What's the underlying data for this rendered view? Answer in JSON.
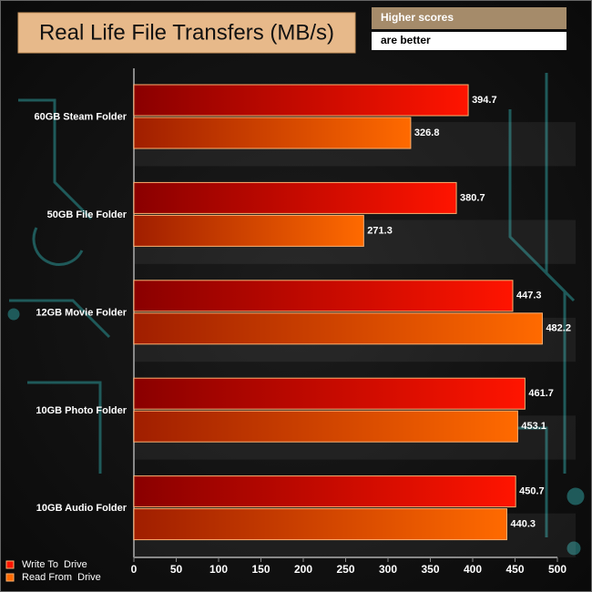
{
  "chart_data": {
    "type": "bar",
    "orientation": "horizontal",
    "title": "Real Life File Transfers (MB/s)",
    "annotations": [
      "Higher scores",
      "are better"
    ],
    "categories": [
      "60GB Steam Folder",
      "50GB File Folder",
      "12GB Movie Folder",
      "10GB Photo Folder",
      "10GB Audio Folder"
    ],
    "series": [
      {
        "name": "Write To  Drive",
        "color": "#ff1400",
        "values": [
          394.7,
          380.7,
          447.3,
          461.7,
          450.7
        ]
      },
      {
        "name": "Read From  Drive",
        "color": "#ff6a00",
        "values": [
          326.8,
          271.3,
          482.2,
          453.1,
          440.3
        ]
      }
    ],
    "xlim": [
      0,
      500
    ],
    "xticks": [
      0,
      50,
      100,
      150,
      200,
      250,
      300,
      350,
      400,
      450,
      500
    ],
    "grid": false,
    "legend": "bottom-left"
  }
}
